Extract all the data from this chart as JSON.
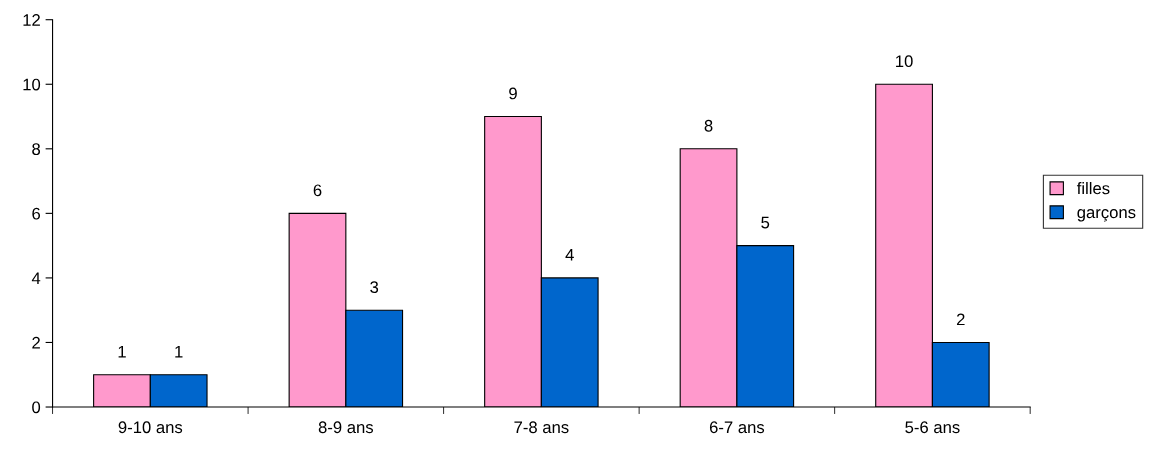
{
  "chart_data": {
    "type": "bar",
    "categories": [
      "9-10 ans",
      "8-9 ans",
      "7-8 ans",
      "6-7 ans",
      "5-6 ans"
    ],
    "series": [
      {
        "name": "filles",
        "color": "#ff99cc",
        "values": [
          1,
          6,
          9,
          8,
          10
        ]
      },
      {
        "name": "garçons",
        "color": "#0066cc",
        "values": [
          1,
          3,
          4,
          5,
          2
        ]
      }
    ],
    "ylim": [
      0,
      12
    ],
    "yticks": [
      0,
      2,
      4,
      6,
      8,
      10,
      12
    ],
    "data_labels": true,
    "grid": false,
    "legend": "right"
  }
}
